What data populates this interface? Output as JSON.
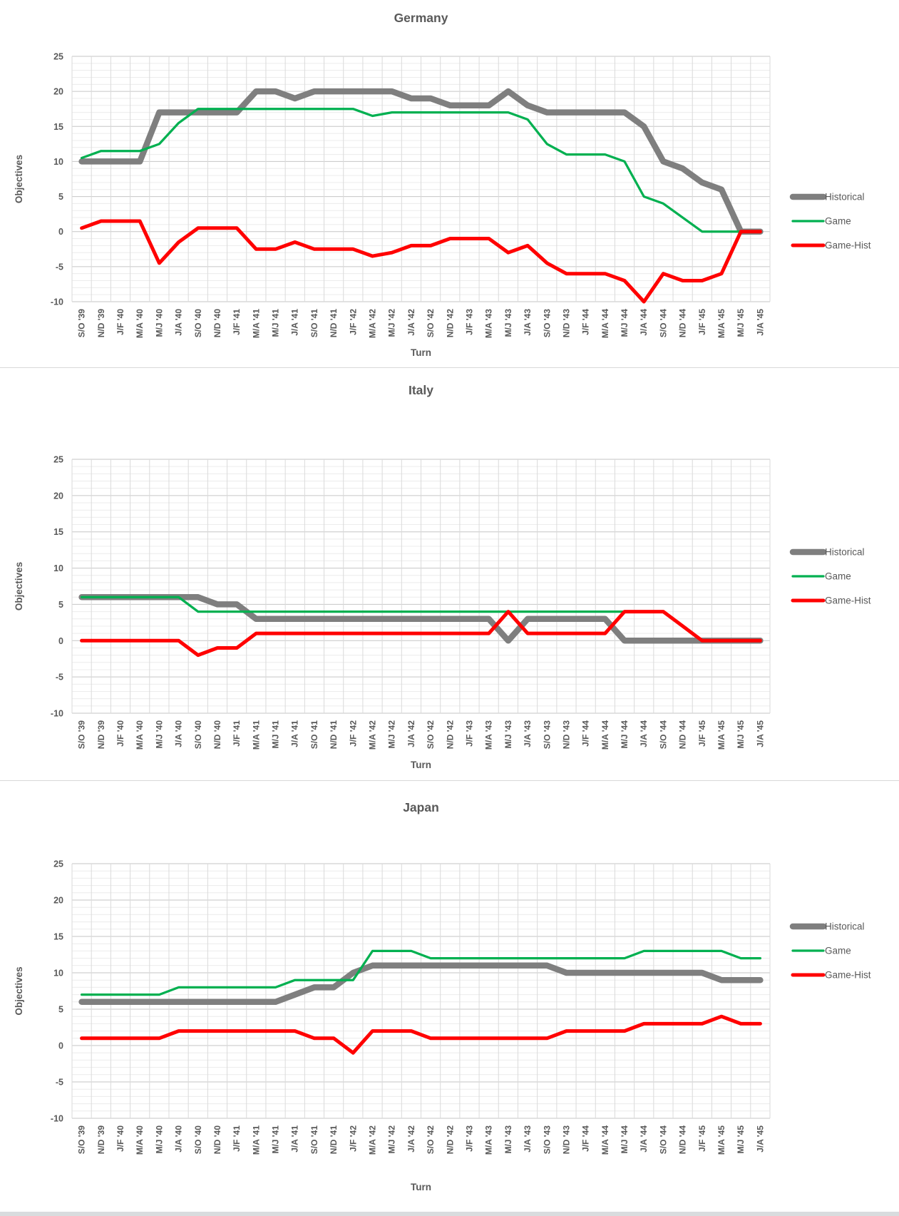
{
  "page": {
    "background": "#FFFFFF",
    "border_color": "#D9D9D9",
    "text_color": "#595959"
  },
  "chart_data": [
    {
      "type": "line",
      "title": "Germany",
      "xlabel": "Turn",
      "ylabel": "Objectives",
      "ylim": [
        -10,
        25
      ],
      "y_major_step": 5,
      "y_minor_step": 1,
      "grid": true,
      "legend_position": "right",
      "y_ticks": [
        25,
        20,
        15,
        10,
        5,
        0,
        -5,
        -10
      ],
      "categories": [
        "S/O '39",
        "N/D '39",
        "J/F '40",
        "M/A '40",
        "M/J '40",
        "J/A '40",
        "S/O '40",
        "N/D '40",
        "J/F '41",
        "M/A '41",
        "M/J '41",
        "J/A '41",
        "S/O '41",
        "N/D '41",
        "J/F '42",
        "M/A '42",
        "M/J '42",
        "J/A '42",
        "S/O '42",
        "N/D '42",
        "J/F '43",
        "M/A '43",
        "M/J '43",
        "J/A '43",
        "S/O '43",
        "N/D '43",
        "J/F '44",
        "M/A '44",
        "M/J '44",
        "J/A '44",
        "S/O '44",
        "N/D '44",
        "J/F '45",
        "M/A '45",
        "M/J '45",
        "J/A '45"
      ],
      "series": [
        {
          "name": "Historical",
          "color": "#7F7F7F",
          "width": 8.5,
          "values": [
            10,
            10,
            10,
            10,
            17,
            17,
            17,
            17,
            17,
            20,
            20,
            19,
            20,
            20,
            20,
            20,
            20,
            19,
            19,
            18,
            18,
            18,
            20,
            18,
            17,
            17,
            17,
            17,
            17,
            15,
            10,
            9,
            7,
            6,
            0,
            0
          ]
        },
        {
          "name": "Game",
          "color": "#00B050",
          "width": 3.25,
          "values": [
            10.5,
            11.5,
            11.5,
            11.5,
            12.5,
            15.5,
            17.5,
            17.5,
            17.5,
            17.5,
            17.5,
            17.5,
            17.5,
            17.5,
            17.5,
            16.5,
            17,
            17,
            17,
            17,
            17,
            17,
            17,
            16,
            12.5,
            11,
            11,
            11,
            10,
            5,
            4,
            2,
            0,
            0,
            0,
            0
          ]
        },
        {
          "name": "Game-Hist",
          "color": "#FF0000",
          "width": 5,
          "values": [
            0.5,
            1.5,
            1.5,
            1.5,
            -4.5,
            -1.5,
            0.5,
            0.5,
            0.5,
            -2.5,
            -2.5,
            -1.5,
            -2.5,
            -2.5,
            -2.5,
            -3.5,
            -3,
            -2,
            -2,
            -1,
            -1,
            -1,
            -3,
            -2,
            -4.5,
            -6,
            -6,
            -6,
            -7,
            -10,
            -6,
            -7,
            -7,
            -6,
            0,
            0
          ]
        }
      ]
    },
    {
      "type": "line",
      "title": "Italy",
      "xlabel": "Turn",
      "ylabel": "Objectives",
      "ylim": [
        -10,
        25
      ],
      "y_major_step": 5,
      "y_minor_step": 1,
      "grid": true,
      "legend_position": "right",
      "y_ticks": [
        25,
        20,
        15,
        10,
        5,
        0,
        -5,
        -10
      ],
      "categories": [
        "S/O '39",
        "N/D '39",
        "J/F '40",
        "M/A '40",
        "M/J '40",
        "J/A '40",
        "S/O '40",
        "N/D '40",
        "J/F '41",
        "M/A '41",
        "M/J '41",
        "J/A '41",
        "S/O '41",
        "N/D '41",
        "J/F '42",
        "M/A '42",
        "M/J '42",
        "J/A '42",
        "S/O '42",
        "N/D '42",
        "J/F '43",
        "M/A '43",
        "M/J '43",
        "J/A '43",
        "S/O '43",
        "N/D '43",
        "J/F '44",
        "M/A '44",
        "M/J '44",
        "J/A '44",
        "S/O '44",
        "N/D '44",
        "J/F '45",
        "M/A '45",
        "M/J '45",
        "J/A '45"
      ],
      "series": [
        {
          "name": "Historical",
          "color": "#7F7F7F",
          "width": 8.5,
          "values": [
            6,
            6,
            6,
            6,
            6,
            6,
            6,
            5,
            5,
            3,
            3,
            3,
            3,
            3,
            3,
            3,
            3,
            3,
            3,
            3,
            3,
            3,
            0,
            3,
            3,
            3,
            3,
            3,
            0,
            0,
            0,
            0,
            0,
            0,
            0,
            0
          ]
        },
        {
          "name": "Game",
          "color": "#00B050",
          "width": 3.25,
          "values": [
            6,
            6,
            6,
            6,
            6,
            6,
            4,
            4,
            4,
            4,
            4,
            4,
            4,
            4,
            4,
            4,
            4,
            4,
            4,
            4,
            4,
            4,
            4,
            4,
            4,
            4,
            4,
            4,
            4,
            4,
            4,
            2,
            0,
            0,
            0,
            0
          ]
        },
        {
          "name": "Game-Hist",
          "color": "#FF0000",
          "width": 5,
          "values": [
            0,
            0,
            0,
            0,
            0,
            0,
            -2,
            -1,
            -1,
            1,
            1,
            1,
            1,
            1,
            1,
            1,
            1,
            1,
            1,
            1,
            1,
            1,
            4,
            1,
            1,
            1,
            1,
            1,
            4,
            4,
            4,
            2,
            0,
            0,
            0,
            0
          ]
        }
      ]
    },
    {
      "type": "line",
      "title": "Japan",
      "xlabel": "Turn",
      "ylabel": "Objectives",
      "ylim": [
        -10,
        25
      ],
      "y_major_step": 5,
      "y_minor_step": 1,
      "grid": true,
      "legend_position": "right",
      "y_ticks": [
        25,
        20,
        15,
        10,
        5,
        0,
        -5,
        -10
      ],
      "categories": [
        "S/O '39",
        "N/D '39",
        "J/F '40",
        "M/A '40",
        "M/J '40",
        "J/A '40",
        "S/O '40",
        "N/D '40",
        "J/F '41",
        "M/A '41",
        "M/J '41",
        "J/A '41",
        "S/O '41",
        "N/D '41",
        "J/F '42",
        "M/A '42",
        "M/J '42",
        "J/A '42",
        "S/O '42",
        "N/D '42",
        "J/F '43",
        "M/A '43",
        "M/J '43",
        "J/A '43",
        "S/O '43",
        "N/D '43",
        "J/F '44",
        "M/A '44",
        "M/J '44",
        "J/A '44",
        "S/O '44",
        "N/D '44",
        "J/F '45",
        "M/A '45",
        "M/J '45",
        "J/A '45"
      ],
      "series": [
        {
          "name": "Historical",
          "color": "#7F7F7F",
          "width": 8.5,
          "values": [
            6,
            6,
            6,
            6,
            6,
            6,
            6,
            6,
            6,
            6,
            6,
            7,
            8,
            8,
            10,
            11,
            11,
            11,
            11,
            11,
            11,
            11,
            11,
            11,
            11,
            10,
            10,
            10,
            10,
            10,
            10,
            10,
            10,
            9,
            9,
            9
          ]
        },
        {
          "name": "Game",
          "color": "#00B050",
          "width": 3.25,
          "values": [
            7,
            7,
            7,
            7,
            7,
            8,
            8,
            8,
            8,
            8,
            8,
            9,
            9,
            9,
            9,
            13,
            13,
            13,
            12,
            12,
            12,
            12,
            12,
            12,
            12,
            12,
            12,
            12,
            12,
            13,
            13,
            13,
            13,
            13,
            12,
            12
          ]
        },
        {
          "name": "Game-Hist",
          "color": "#FF0000",
          "width": 5,
          "values": [
            1,
            1,
            1,
            1,
            1,
            2,
            2,
            2,
            2,
            2,
            2,
            2,
            1,
            1,
            -1,
            2,
            2,
            2,
            1,
            1,
            1,
            1,
            1,
            1,
            1,
            2,
            2,
            2,
            2,
            3,
            3,
            3,
            3,
            4,
            3,
            3
          ]
        }
      ]
    }
  ]
}
